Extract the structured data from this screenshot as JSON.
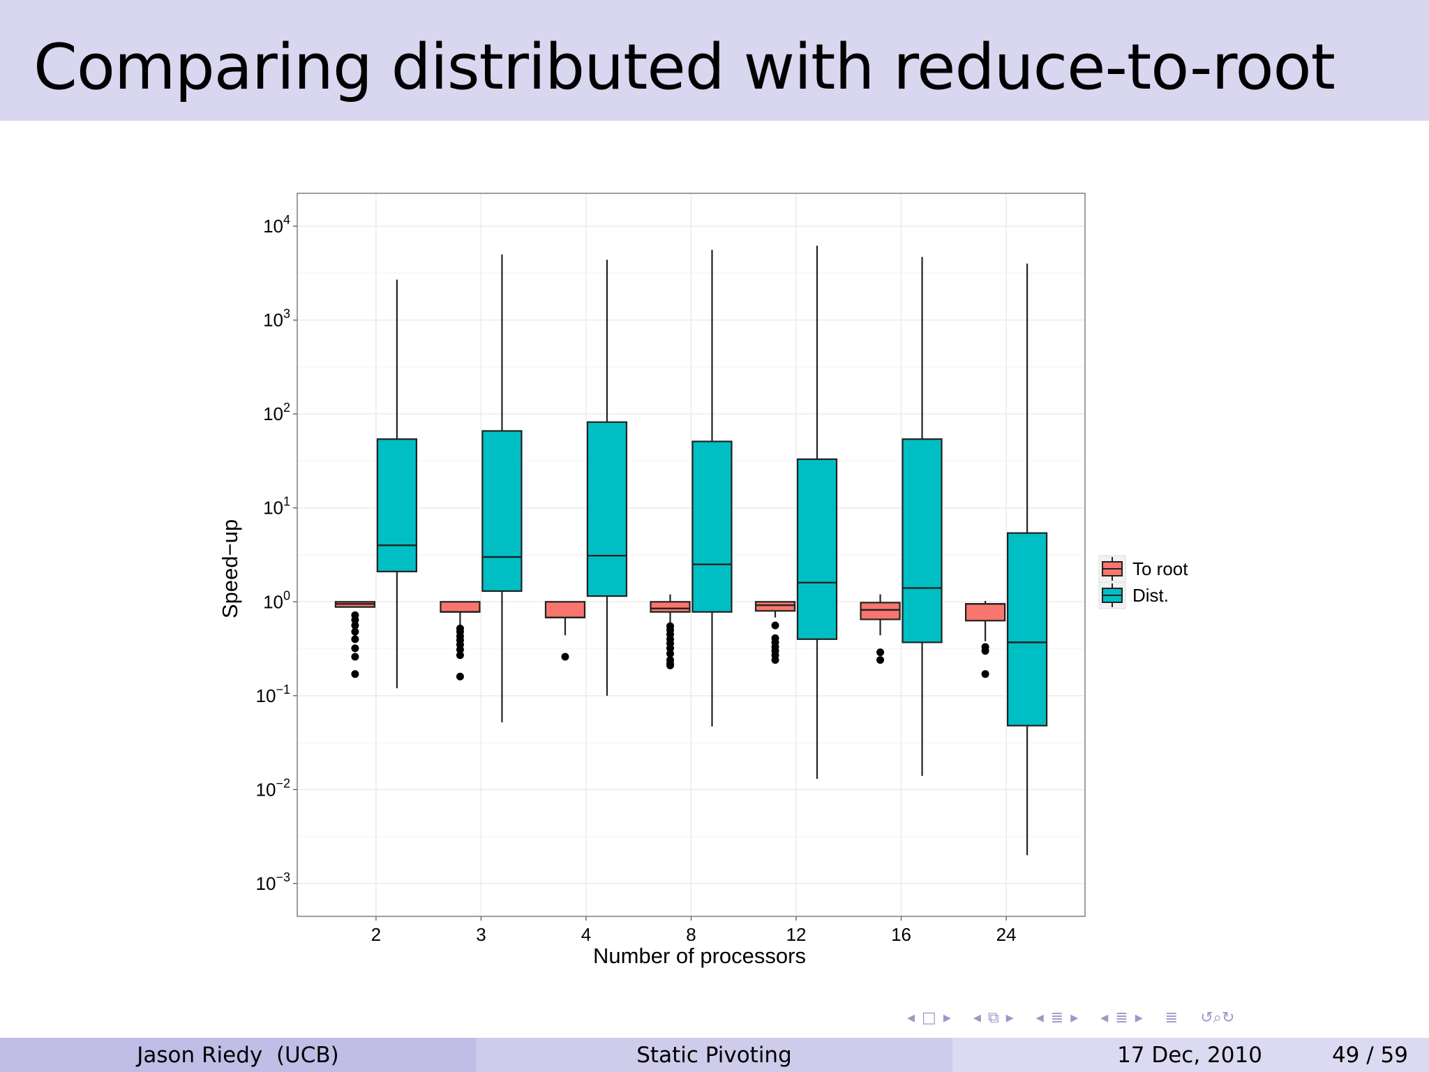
{
  "slide": {
    "title": "Comparing distributed with reduce-to-root"
  },
  "footer": {
    "author": "Jason Riedy  (UCB)",
    "talk": "Static Pivoting",
    "date": "17 Dec, 2010",
    "page": "49 / 59"
  },
  "nav_icons": [
    "nav-left-arrow",
    "frame-icon",
    "nav-right-arrow",
    "nav-left-arrow",
    "frames-icon",
    "nav-right-arrow",
    "nav-left-arrow",
    "section-icon",
    "nav-right-arrow",
    "nav-left-arrow",
    "subsection-icon",
    "nav-right-arrow",
    "outline-icon",
    "search-icon"
  ],
  "colors": {
    "to_root": "#f8766d",
    "dist": "#00bfc4",
    "grid": "#ebebeb",
    "title_bar": "#d9d6f0"
  },
  "chart_data": {
    "type": "boxplot",
    "xlabel": "Number of processors",
    "ylabel": "Speed−up",
    "yscale": "log10",
    "ylim_exp": [
      -3.35,
      4.35
    ],
    "yticks_exp": [
      -3,
      -2,
      -1,
      0,
      1,
      2,
      3,
      4
    ],
    "ytick_labels": [
      "10−3",
      "10−2",
      "10−1",
      "10⁰",
      "10¹",
      "10²",
      "10³",
      "10⁴"
    ],
    "categories": [
      "2",
      "3",
      "4",
      "8",
      "12",
      "16",
      "24"
    ],
    "legend_position": "right",
    "grid": true,
    "series": [
      {
        "name": "To root",
        "color": "#f8766d",
        "boxes": [
          {
            "whisker_low": 0.88,
            "q1": 0.88,
            "median": 0.95,
            "q3": 1.0,
            "whisker_high": 1.0,
            "outliers": [
              0.72,
              0.64,
              0.56,
              0.48,
              0.4,
              0.32,
              0.26,
              0.17
            ]
          },
          {
            "whisker_low": 0.5,
            "q1": 0.78,
            "median": 0.78,
            "q3": 1.0,
            "whisker_high": 1.0,
            "outliers": [
              0.52,
              0.48,
              0.43,
              0.39,
              0.35,
              0.31,
              0.27,
              0.16
            ]
          },
          {
            "whisker_low": 0.44,
            "q1": 0.68,
            "median": 0.68,
            "q3": 1.0,
            "whisker_high": 1.0,
            "outliers": [
              0.26
            ]
          },
          {
            "whisker_low": 0.55,
            "q1": 0.78,
            "median": 0.85,
            "q3": 1.0,
            "whisker_high": 1.2,
            "outliers": [
              0.55,
              0.5,
              0.45,
              0.4,
              0.36,
              0.32,
              0.28,
              0.24,
              0.22,
              0.21
            ]
          },
          {
            "whisker_low": 0.68,
            "q1": 0.8,
            "median": 0.92,
            "q3": 1.0,
            "whisker_high": 1.0,
            "outliers": [
              0.56,
              0.41,
              0.37,
              0.33,
              0.3,
              0.27,
              0.24
            ]
          },
          {
            "whisker_low": 0.44,
            "q1": 0.65,
            "median": 0.82,
            "q3": 0.98,
            "whisker_high": 1.2,
            "outliers": [
              0.29,
              0.24
            ]
          },
          {
            "whisker_low": 0.38,
            "q1": 0.63,
            "median": 0.95,
            "q3": 0.95,
            "whisker_high": 1.02,
            "outliers": [
              0.33,
              0.3,
              0.17
            ]
          }
        ]
      },
      {
        "name": "Dist.",
        "color": "#00bfc4",
        "boxes": [
          {
            "whisker_low": 0.12,
            "q1": 2.1,
            "median": 4.0,
            "q3": 54,
            "whisker_high": 2700,
            "outliers": []
          },
          {
            "whisker_low": 0.052,
            "q1": 1.3,
            "median": 3.0,
            "q3": 66,
            "whisker_high": 5000,
            "outliers": []
          },
          {
            "whisker_low": 0.1,
            "q1": 1.15,
            "median": 3.1,
            "q3": 82,
            "whisker_high": 4400,
            "outliers": []
          },
          {
            "whisker_low": 0.047,
            "q1": 0.78,
            "median": 2.5,
            "q3": 51,
            "whisker_high": 5600,
            "outliers": []
          },
          {
            "whisker_low": 0.013,
            "q1": 0.4,
            "median": 1.6,
            "q3": 33,
            "whisker_high": 6200,
            "outliers": []
          },
          {
            "whisker_low": 0.014,
            "q1": 0.37,
            "median": 1.4,
            "q3": 54,
            "whisker_high": 4700,
            "outliers": []
          },
          {
            "whisker_low": 0.002,
            "q1": 0.048,
            "median": 0.37,
            "q3": 5.4,
            "whisker_high": 4000,
            "outliers": []
          }
        ]
      }
    ]
  }
}
